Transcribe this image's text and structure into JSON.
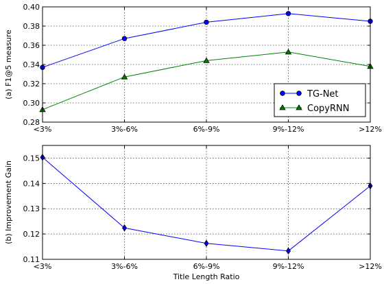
{
  "chart_data": [
    {
      "type": "line",
      "ylabel": "(a) F1@5 measure",
      "xlabel": "",
      "categories": [
        "<3%",
        "3%-6%",
        "6%-9%",
        "9%-12%",
        ">12%"
      ],
      "ylim": [
        0.28,
        0.4
      ],
      "yticks": [
        "0.28",
        "0.30",
        "0.32",
        "0.34",
        "0.36",
        "0.38",
        "0.40"
      ],
      "grid": true,
      "legend": "lower-right",
      "series": [
        {
          "name": "TG-Net",
          "values": [
            0.337,
            0.367,
            0.384,
            0.393,
            0.385
          ],
          "color": "#0000ff",
          "marker": "circle"
        },
        {
          "name": "CopyRNN",
          "values": [
            0.293,
            0.327,
            0.344,
            0.353,
            0.338
          ],
          "color": "#008000",
          "marker": "triangle"
        }
      ]
    },
    {
      "type": "line",
      "ylabel": "(b) Improvement Gain",
      "xlabel": "Title Length Ratio",
      "categories": [
        "<3%",
        "3%-6%",
        "6%-9%",
        "9%-12%",
        ">12%"
      ],
      "ylim": [
        0.11,
        0.155
      ],
      "yticks": [
        "0.11",
        "0.12",
        "0.13",
        "0.14",
        "0.15"
      ],
      "grid": true,
      "series": [
        {
          "values": [
            0.1503,
            0.1224,
            0.1163,
            0.1133,
            0.139
          ],
          "color": "#0000ff",
          "marker": "diamond"
        }
      ]
    }
  ]
}
